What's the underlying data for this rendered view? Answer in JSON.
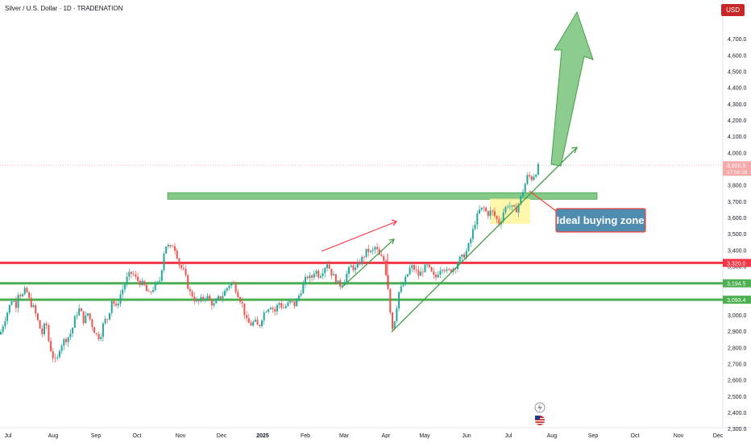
{
  "header": {
    "title": "Silver / U.S. Dollar · 1D · TRADENATION",
    "currency": "USD"
  },
  "chart_data": {
    "type": "candlestick",
    "title": "Silver / U.S. Dollar · 1D · TRADENATION",
    "xlabel": "",
    "ylabel": "",
    "ylim": [
      2260,
      4830
    ],
    "grid": false,
    "y_ticks": [
      "2,300.0",
      "2,400.0",
      "2,500.0",
      "2,600.0",
      "2,700.0",
      "2,800.0",
      "2,900.0",
      "3,000.0",
      "3,100.0",
      "3,200.0",
      "3,300.0",
      "3,400.0",
      "3,500.0",
      "3,600.0",
      "3,700.0",
      "3,800.0",
      "3,900.0",
      "4,000.0",
      "4,100.0",
      "4,200.0",
      "4,300.0",
      "4,400.0",
      "4,500.0",
      "4,600.0",
      "4,700.0"
    ],
    "x_ticks": [
      "Jul",
      "Aug",
      "Sep",
      "Oct",
      "Nov",
      "Dec",
      "2025",
      "Feb",
      "Mar",
      "Apr",
      "May",
      "Jun",
      "Jul",
      "Aug",
      "Sep",
      "Oct",
      "Nov",
      "Dec"
    ],
    "x_ticks_bold": [
      "2025"
    ],
    "price_path": [
      [
        0,
        2880
      ],
      [
        5,
        2960
      ],
      [
        10,
        3030
      ],
      [
        15,
        3100
      ],
      [
        20,
        3060
      ],
      [
        23,
        3150
      ],
      [
        27,
        3110
      ],
      [
        32,
        3160
      ],
      [
        37,
        3080
      ],
      [
        42,
        3040
      ],
      [
        47,
        2960
      ],
      [
        52,
        2880
      ],
      [
        57,
        2960
      ],
      [
        61,
        2820
      ],
      [
        66,
        2740
      ],
      [
        70,
        2700
      ],
      [
        74,
        2800
      ],
      [
        79,
        2840
      ],
      [
        84,
        2860
      ],
      [
        89,
        2900
      ],
      [
        94,
        3000
      ],
      [
        99,
        3040
      ],
      [
        104,
        2960
      ],
      [
        109,
        3010
      ],
      [
        114,
        2940
      ],
      [
        119,
        2880
      ],
      [
        124,
        2860
      ],
      [
        129,
        2960
      ],
      [
        134,
        2980
      ],
      [
        139,
        3100
      ],
      [
        144,
        3040
      ],
      [
        149,
        3120
      ],
      [
        154,
        3180
      ],
      [
        159,
        3240
      ],
      [
        164,
        3260
      ],
      [
        169,
        3220
      ],
      [
        174,
        3200
      ],
      [
        179,
        3180
      ],
      [
        184,
        3120
      ],
      [
        189,
        3160
      ],
      [
        194,
        3180
      ],
      [
        199,
        3220
      ],
      [
        203,
        3380
      ],
      [
        207,
        3440
      ],
      [
        211,
        3400
      ],
      [
        215,
        3440
      ],
      [
        219,
        3380
      ],
      [
        223,
        3300
      ],
      [
        227,
        3280
      ],
      [
        231,
        3220
      ],
      [
        235,
        3140
      ],
      [
        239,
        3120
      ],
      [
        243,
        3080
      ],
      [
        247,
        3080
      ],
      [
        251,
        3100
      ],
      [
        256,
        3120
      ],
      [
        261,
        3080
      ],
      [
        266,
        3060
      ],
      [
        271,
        3100
      ],
      [
        276,
        3120
      ],
      [
        281,
        3160
      ],
      [
        286,
        3200
      ],
      [
        291,
        3180
      ],
      [
        296,
        3120
      ],
      [
        301,
        3060
      ],
      [
        306,
        2960
      ],
      [
        311,
        2940
      ],
      [
        316,
        2960
      ],
      [
        321,
        2920
      ],
      [
        326,
        3000
      ],
      [
        331,
        3040
      ],
      [
        336,
        3060
      ],
      [
        341,
        3020
      ],
      [
        346,
        3080
      ],
      [
        351,
        3040
      ],
      [
        356,
        3060
      ],
      [
        361,
        3080
      ],
      [
        366,
        3060
      ],
      [
        371,
        3120
      ],
      [
        376,
        3180
      ],
      [
        381,
        3240
      ],
      [
        386,
        3220
      ],
      [
        391,
        3280
      ],
      [
        396,
        3240
      ],
      [
        401,
        3280
      ],
      [
        406,
        3320
      ],
      [
        411,
        3260
      ],
      [
        416,
        3220
      ],
      [
        421,
        3180
      ],
      [
        426,
        3200
      ],
      [
        431,
        3260
      ],
      [
        436,
        3300
      ],
      [
        441,
        3280
      ],
      [
        446,
        3320
      ],
      [
        451,
        3360
      ],
      [
        456,
        3400
      ],
      [
        461,
        3380
      ],
      [
        466,
        3420
      ],
      [
        471,
        3360
      ],
      [
        476,
        3340
      ],
      [
        481,
        3200
      ],
      [
        484,
        3040
      ],
      [
        487,
        2920
      ],
      [
        490,
        2980
      ],
      [
        495,
        3140
      ],
      [
        500,
        3180
      ],
      [
        505,
        3240
      ],
      [
        510,
        3300
      ],
      [
        515,
        3280
      ],
      [
        520,
        3240
      ],
      [
        525,
        3280
      ],
      [
        530,
        3300
      ],
      [
        535,
        3260
      ],
      [
        540,
        3220
      ],
      [
        545,
        3280
      ],
      [
        550,
        3300
      ],
      [
        555,
        3260
      ],
      [
        560,
        3280
      ],
      [
        565,
        3300
      ],
      [
        570,
        3340
      ],
      [
        575,
        3360
      ],
      [
        580,
        3400
      ],
      [
        585,
        3480
      ],
      [
        590,
        3580
      ],
      [
        595,
        3640
      ],
      [
        600,
        3660
      ],
      [
        605,
        3620
      ],
      [
        610,
        3640
      ],
      [
        615,
        3600
      ],
      [
        620,
        3560
      ],
      [
        625,
        3640
      ],
      [
        630,
        3680
      ],
      [
        635,
        3660
      ],
      [
        640,
        3640
      ],
      [
        645,
        3700
      ],
      [
        650,
        3780
      ],
      [
        655,
        3860
      ],
      [
        660,
        3840
      ],
      [
        665,
        3880
      ],
      [
        669,
        3921
      ]
    ],
    "last_price": {
      "value": "3,920.9",
      "countdown": "17:58:28",
      "color": "#f7a8a8"
    },
    "levels": [
      {
        "value": "3,320.0",
        "color": "#f23645"
      },
      {
        "value": "3,194.5",
        "color": "#4caf50"
      },
      {
        "value": "3,093.4",
        "color": "#4caf50"
      }
    ],
    "resistance_zone": {
      "from": 3712,
      "to": 3752,
      "color": "#66bb6a"
    },
    "buy_zone": {
      "from": 3560,
      "to": 3715,
      "color": "#fff59d"
    },
    "annotation": {
      "text": "Ideal buying zone",
      "bg": "#4f8db0",
      "border": "#f44336"
    },
    "up_color": "#26a69a",
    "down_color": "#ef5350",
    "trend_color": "#43a047",
    "target_arrow_color": "#66bb6a"
  }
}
